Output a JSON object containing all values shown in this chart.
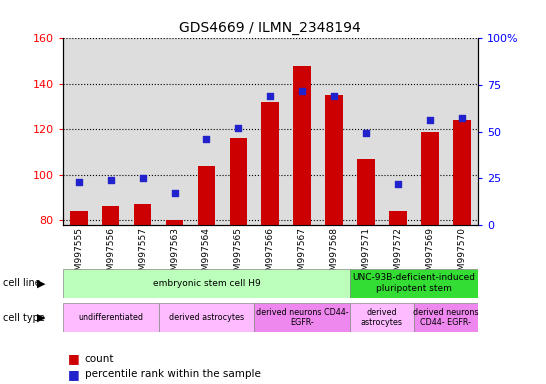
{
  "title": "GDS4669 / ILMN_2348194",
  "samples": [
    "GSM997555",
    "GSM997556",
    "GSM997557",
    "GSM997563",
    "GSM997564",
    "GSM997565",
    "GSM997566",
    "GSM997567",
    "GSM997568",
    "GSM997571",
    "GSM997572",
    "GSM997569",
    "GSM997570"
  ],
  "count_values": [
    84,
    86,
    87,
    80,
    104,
    116,
    132,
    148,
    135,
    107,
    84,
    119,
    124
  ],
  "percentile_values": [
    23,
    24,
    25,
    17,
    46,
    52,
    69,
    72,
    69,
    49,
    22,
    56,
    57
  ],
  "ylim_left": [
    78,
    160
  ],
  "ylim_right": [
    0,
    100
  ],
  "yticks_left": [
    80,
    100,
    120,
    140,
    160
  ],
  "yticks_right": [
    0,
    25,
    50,
    75,
    100
  ],
  "ytick_right_labels": [
    "0",
    "25",
    "50",
    "75",
    "100%"
  ],
  "bar_color": "#cc0000",
  "dot_color": "#2222cc",
  "bar_bottom": 78,
  "cell_line_data": [
    {
      "label": "embryonic stem cell H9",
      "start": 0,
      "end": 9,
      "color": "#bbffbb"
    },
    {
      "label": "UNC-93B-deficient-induced\npluripotent stem",
      "start": 9,
      "end": 13,
      "color": "#33dd33"
    }
  ],
  "cell_type_data": [
    {
      "label": "undifferentiated",
      "start": 0,
      "end": 3,
      "color": "#ffbbff"
    },
    {
      "label": "derived astrocytes",
      "start": 3,
      "end": 6,
      "color": "#ffbbff"
    },
    {
      "label": "derived neurons CD44-\nEGFR-",
      "start": 6,
      "end": 9,
      "color": "#ee88ee"
    },
    {
      "label": "derived\nastrocytes",
      "start": 9,
      "end": 11,
      "color": "#ffbbff"
    },
    {
      "label": "derived neurons\nCD44- EGFR-",
      "start": 11,
      "end": 13,
      "color": "#ee88ee"
    }
  ],
  "col_colors": [
    "#dddddd",
    "#dddddd",
    "#dddddd",
    "#dddddd",
    "#dddddd",
    "#dddddd",
    "#dddddd",
    "#dddddd",
    "#dddddd",
    "#dddddd",
    "#dddddd",
    "#dddddd",
    "#dddddd"
  ],
  "legend_count_color": "#cc0000",
  "legend_pct_color": "#2222cc"
}
